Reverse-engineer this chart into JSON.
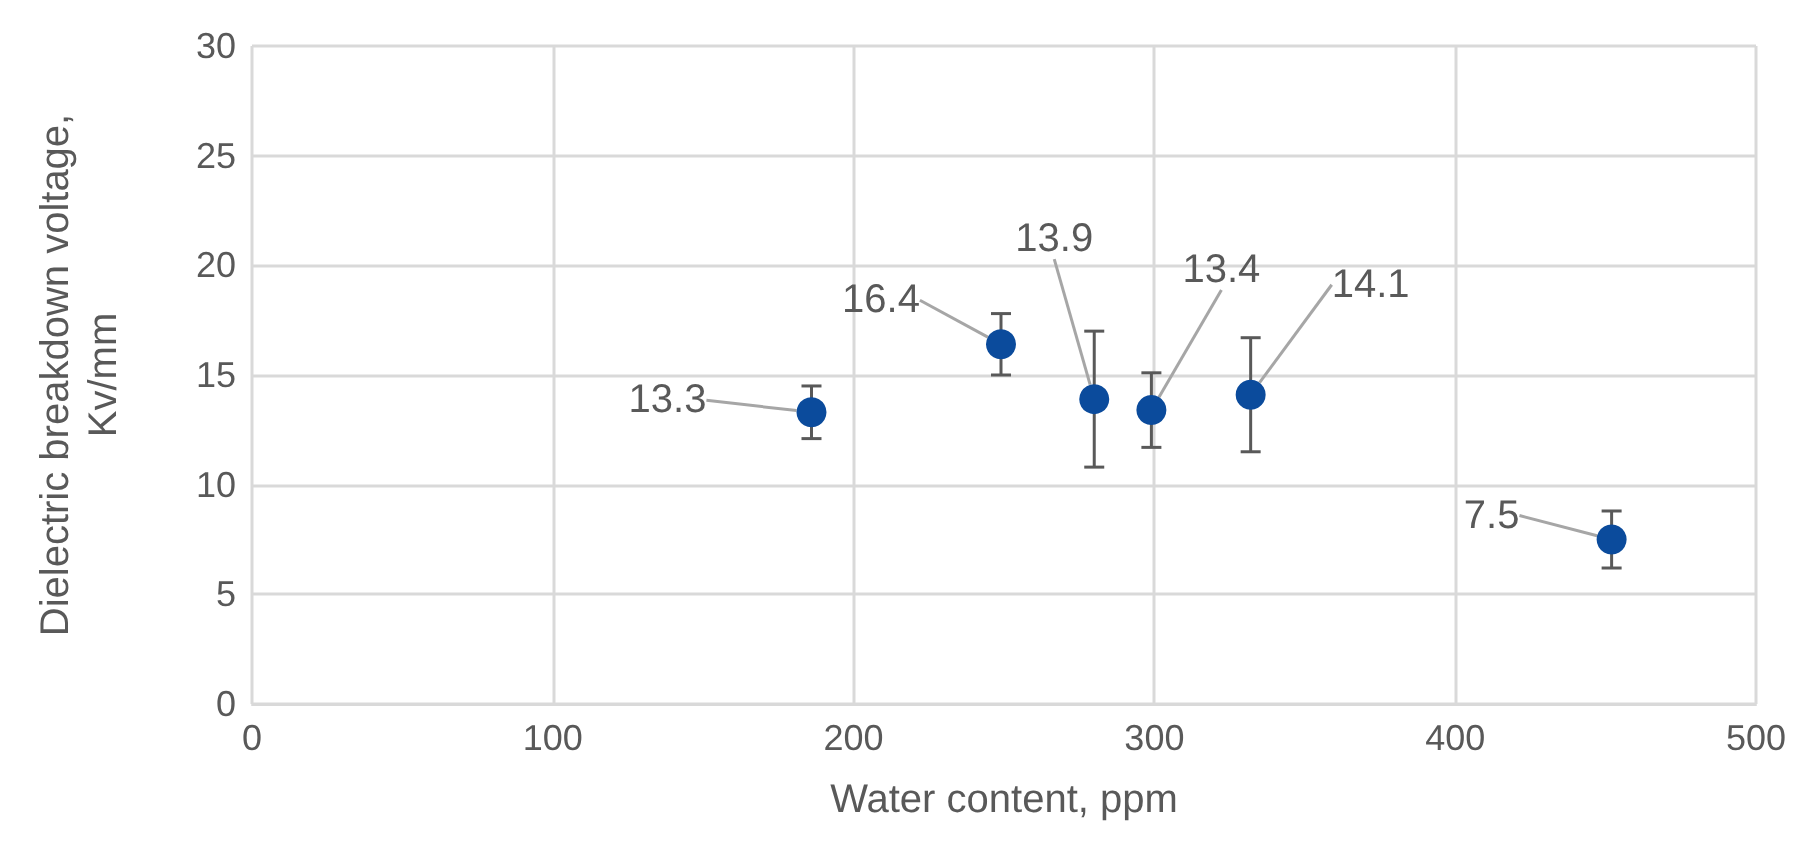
{
  "chart_data": {
    "type": "scatter",
    "xlabel": "Water content, ppm",
    "ylabel": "Dielectric breakdown voltage, Kv/mm",
    "x": [
      186,
      249,
      280,
      299,
      332,
      452
    ],
    "series": [
      {
        "color": "#0b4b9c",
        "values": [
          13.3,
          16.4,
          13.9,
          13.4,
          14.1,
          7.5
        ],
        "errors": [
          1.2,
          1.4,
          3.1,
          1.7,
          2.6,
          1.3
        ]
      }
    ],
    "xlim": [
      0,
      500
    ],
    "xticks": [
      0,
      100,
      200,
      300,
      400,
      500
    ],
    "ylim": [
      0,
      30
    ],
    "yticks": [
      0,
      5,
      10,
      15,
      20,
      25,
      30
    ],
    "grid": true,
    "marker": "circle",
    "data_labels": true
  }
}
